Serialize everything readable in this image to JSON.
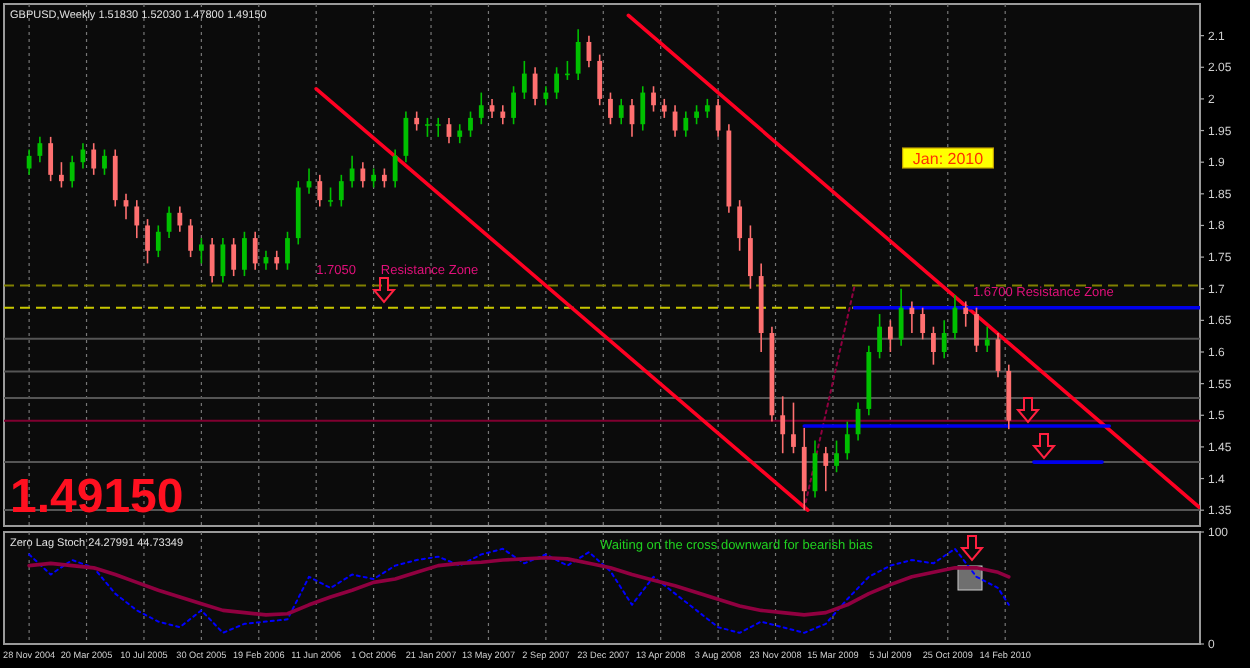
{
  "chart_data": [
    {
      "type": "candlestick",
      "title": "GBPUSD,Weekly  1.51830 1.52030 1.47800 1.49150",
      "x": [
        "2004-11-28",
        "2004-12-19",
        "2005-01-09",
        "2005-01-30",
        "2005-02-20",
        "2005-03-13",
        "2005-04-03",
        "2005-04-24",
        "2005-05-15",
        "2005-06-05",
        "2005-06-26",
        "2005-07-17",
        "2005-08-07",
        "2005-08-28",
        "2005-09-18",
        "2005-10-09",
        "2005-10-30",
        "2005-11-20",
        "2005-12-11",
        "2006-01-01",
        "2006-01-22",
        "2006-02-12",
        "2006-03-05",
        "2006-03-26",
        "2006-04-16",
        "2006-05-07",
        "2006-05-28",
        "2006-06-18",
        "2006-07-09",
        "2006-07-30",
        "2006-08-20",
        "2006-09-10",
        "2006-10-01",
        "2006-10-22",
        "2006-11-12",
        "2006-12-03",
        "2006-12-24",
        "2007-01-14",
        "2007-02-04",
        "2007-02-25",
        "2007-03-18",
        "2007-04-08",
        "2007-04-29",
        "2007-05-20",
        "2007-06-10",
        "2007-07-01",
        "2007-07-22",
        "2007-08-12",
        "2007-09-02",
        "2007-09-23",
        "2007-10-14",
        "2007-11-04",
        "2007-11-25",
        "2007-12-16",
        "2008-01-06",
        "2008-01-27",
        "2008-02-17",
        "2008-03-09",
        "2008-03-30",
        "2008-04-20",
        "2008-05-11",
        "2008-06-01",
        "2008-06-22",
        "2008-07-13",
        "2008-08-03",
        "2008-08-24",
        "2008-09-14",
        "2008-10-05",
        "2008-10-26",
        "2008-11-16",
        "2008-12-07",
        "2008-12-28",
        "2009-01-18",
        "2009-02-08",
        "2009-03-01",
        "2009-03-22",
        "2009-04-12",
        "2009-05-03",
        "2009-05-24",
        "2009-06-14",
        "2009-07-05",
        "2009-07-26",
        "2009-08-16",
        "2009-09-06",
        "2009-09-27",
        "2009-10-18",
        "2009-11-08",
        "2009-11-29",
        "2009-12-20",
        "2010-01-10",
        "2010-01-31",
        "2010-02-21"
      ],
      "ohlc": [
        [
          1.89,
          1.92,
          1.88,
          1.91
        ],
        [
          1.91,
          1.94,
          1.9,
          1.93
        ],
        [
          1.93,
          1.94,
          1.87,
          1.88
        ],
        [
          1.88,
          1.9,
          1.86,
          1.87
        ],
        [
          1.87,
          1.91,
          1.86,
          1.9
        ],
        [
          1.9,
          1.93,
          1.89,
          1.92
        ],
        [
          1.92,
          1.93,
          1.88,
          1.89
        ],
        [
          1.89,
          1.92,
          1.88,
          1.91
        ],
        [
          1.91,
          1.92,
          1.83,
          1.84
        ],
        [
          1.84,
          1.85,
          1.81,
          1.83
        ],
        [
          1.83,
          1.84,
          1.78,
          1.8
        ],
        [
          1.8,
          1.81,
          1.74,
          1.76
        ],
        [
          1.76,
          1.8,
          1.75,
          1.79
        ],
        [
          1.79,
          1.83,
          1.78,
          1.82
        ],
        [
          1.82,
          1.83,
          1.79,
          1.8
        ],
        [
          1.8,
          1.81,
          1.75,
          1.76
        ],
        [
          1.76,
          1.78,
          1.74,
          1.77
        ],
        [
          1.77,
          1.78,
          1.71,
          1.72
        ],
        [
          1.72,
          1.78,
          1.71,
          1.77
        ],
        [
          1.77,
          1.78,
          1.72,
          1.73
        ],
        [
          1.73,
          1.79,
          1.72,
          1.78
        ],
        [
          1.78,
          1.79,
          1.73,
          1.74
        ],
        [
          1.74,
          1.76,
          1.73,
          1.75
        ],
        [
          1.75,
          1.76,
          1.73,
          1.74
        ],
        [
          1.74,
          1.79,
          1.73,
          1.78
        ],
        [
          1.78,
          1.87,
          1.77,
          1.86
        ],
        [
          1.86,
          1.89,
          1.85,
          1.87
        ],
        [
          1.87,
          1.88,
          1.83,
          1.84
        ],
        [
          1.84,
          1.86,
          1.83,
          1.84
        ],
        [
          1.84,
          1.88,
          1.83,
          1.87
        ],
        [
          1.87,
          1.91,
          1.86,
          1.89
        ],
        [
          1.89,
          1.9,
          1.86,
          1.87
        ],
        [
          1.87,
          1.89,
          1.86,
          1.88
        ],
        [
          1.88,
          1.89,
          1.86,
          1.87
        ],
        [
          1.87,
          1.92,
          1.86,
          1.91
        ],
        [
          1.91,
          1.98,
          1.9,
          1.97
        ],
        [
          1.97,
          1.98,
          1.95,
          1.96
        ],
        [
          1.96,
          1.97,
          1.94,
          1.96
        ],
        [
          1.96,
          1.97,
          1.94,
          1.96
        ],
        [
          1.96,
          1.97,
          1.93,
          1.94
        ],
        [
          1.94,
          1.96,
          1.93,
          1.95
        ],
        [
          1.95,
          1.98,
          1.94,
          1.97
        ],
        [
          1.97,
          2.01,
          1.96,
          1.99
        ],
        [
          1.99,
          2.0,
          1.97,
          1.98
        ],
        [
          1.98,
          1.99,
          1.96,
          1.97
        ],
        [
          1.97,
          2.02,
          1.96,
          2.01
        ],
        [
          2.01,
          2.06,
          2.0,
          2.04
        ],
        [
          2.04,
          2.05,
          1.99,
          2.0
        ],
        [
          2.0,
          2.02,
          1.99,
          2.01
        ],
        [
          2.01,
          2.05,
          2.0,
          2.04
        ],
        [
          2.04,
          2.06,
          2.03,
          2.04
        ],
        [
          2.04,
          2.11,
          2.03,
          2.09
        ],
        [
          2.09,
          2.1,
          2.05,
          2.06
        ],
        [
          2.06,
          2.07,
          1.99,
          2.0
        ],
        [
          2.0,
          2.01,
          1.96,
          1.97
        ],
        [
          1.97,
          2.0,
          1.96,
          1.99
        ],
        [
          1.99,
          2.0,
          1.94,
          1.96
        ],
        [
          1.96,
          2.02,
          1.95,
          2.01
        ],
        [
          2.01,
          2.02,
          1.98,
          1.99
        ],
        [
          1.99,
          2.0,
          1.97,
          1.98
        ],
        [
          1.98,
          1.99,
          1.94,
          1.95
        ],
        [
          1.95,
          1.98,
          1.94,
          1.97
        ],
        [
          1.97,
          1.99,
          1.96,
          1.98
        ],
        [
          1.98,
          2.0,
          1.97,
          1.99
        ],
        [
          1.99,
          2.0,
          1.94,
          1.95
        ],
        [
          1.95,
          1.96,
          1.82,
          1.83
        ],
        [
          1.83,
          1.84,
          1.76,
          1.78
        ],
        [
          1.78,
          1.8,
          1.7,
          1.72
        ],
        [
          1.72,
          1.74,
          1.6,
          1.63
        ],
        [
          1.63,
          1.64,
          1.49,
          1.5
        ],
        [
          1.5,
          1.53,
          1.44,
          1.47
        ],
        [
          1.47,
          1.52,
          1.44,
          1.45
        ],
        [
          1.45,
          1.48,
          1.35,
          1.38
        ],
        [
          1.38,
          1.46,
          1.37,
          1.44
        ],
        [
          1.44,
          1.45,
          1.38,
          1.42
        ],
        [
          1.42,
          1.46,
          1.41,
          1.44
        ],
        [
          1.44,
          1.49,
          1.43,
          1.47
        ],
        [
          1.47,
          1.52,
          1.46,
          1.51
        ],
        [
          1.51,
          1.61,
          1.5,
          1.6
        ],
        [
          1.6,
          1.66,
          1.59,
          1.64
        ],
        [
          1.64,
          1.65,
          1.6,
          1.62
        ],
        [
          1.62,
          1.7,
          1.61,
          1.67
        ],
        [
          1.67,
          1.68,
          1.63,
          1.66
        ],
        [
          1.66,
          1.67,
          1.62,
          1.63
        ],
        [
          1.63,
          1.64,
          1.58,
          1.6
        ],
        [
          1.6,
          1.65,
          1.59,
          1.63
        ],
        [
          1.63,
          1.69,
          1.62,
          1.67
        ],
        [
          1.67,
          1.68,
          1.64,
          1.66
        ],
        [
          1.66,
          1.67,
          1.6,
          1.61
        ],
        [
          1.61,
          1.64,
          1.6,
          1.62
        ],
        [
          1.62,
          1.63,
          1.56,
          1.57
        ],
        [
          1.57,
          1.58,
          1.478,
          1.4915
        ]
      ],
      "series": [
        {
          "type": "line",
          "x": [
            "2006-06-11",
            "2009-01-25"
          ],
          "values": [
            2.016,
            1.35
          ],
          "color": "#ff0022"
        },
        {
          "type": "line",
          "x": [
            "2008-02-10",
            "2011-02-27"
          ],
          "values": [
            2.132,
            1.355
          ],
          "color": "#ff0022"
        },
        {
          "type": "line",
          "x": [
            "2009-01-18",
            "2009-04-26"
          ],
          "values": [
            1.352,
            1.704
          ],
          "color": "#900040",
          "line_style": "dotted"
        },
        {
          "type": "line",
          "x": [
            "2009-04-26",
            "2011-02-27"
          ],
          "values": [
            1.67,
            1.67
          ],
          "color": "#0000ee"
        },
        {
          "type": "line",
          "x": [
            "2009-01-18",
            "2010-09-05"
          ],
          "values": [
            1.483,
            1.483
          ],
          "color": "#0000ee"
        },
        {
          "type": "line",
          "x": [
            "2010-04-11",
            "2010-08-22"
          ],
          "values": [
            1.426,
            1.426
          ],
          "color": "#0000ee"
        }
      ],
      "ref_lines": [
        {
          "axis": "y",
          "value": 1.705,
          "color": "#808000",
          "line_style": "dashed"
        },
        {
          "axis": "y",
          "value": 1.67,
          "color": "#c8c800",
          "line_style": "dashed"
        },
        {
          "axis": "y",
          "value": 1.4915,
          "color": "#800030",
          "line_style": "solid"
        },
        {
          "axis": "y",
          "value": 1.6208,
          "color": "#555555"
        },
        {
          "axis": "y",
          "value": 1.5691,
          "color": "#555555"
        },
        {
          "axis": "y",
          "value": 1.5273,
          "color": "#555555"
        },
        {
          "axis": "y",
          "value": 1.426,
          "color": "#555555"
        },
        {
          "axis": "y",
          "value": 1.3503,
          "color": "#555555"
        }
      ],
      "annotations": [
        {
          "text": "1.7050",
          "x": "2006-06-11",
          "y": 1.705
        },
        {
          "text": "Resistance Zone",
          "x": "2006-10-15",
          "y": 1.705
        },
        {
          "text": "1.6700  Resistance Zone",
          "x": "2009-12-13",
          "y": 1.67
        },
        "Jan: 2010",
        "1.49150"
      ],
      "xlim": [
        "2004-10-10",
        "2011-03-01"
      ],
      "xticks": [
        "2004-11-28",
        "2005-03-20",
        "2005-07-10",
        "2005-10-30",
        "2006-02-19",
        "2006-06-11",
        "2006-10-01",
        "2007-01-21",
        "2007-05-13",
        "2007-09-02",
        "2007-12-23",
        "2008-04-13",
        "2008-08-03",
        "2008-11-23",
        "2009-03-15",
        "2009-07-05",
        "2009-10-25",
        "2010-02-14"
      ],
      "ylim": [
        1.325,
        2.15
      ],
      "yticks": [
        1.35,
        1.4,
        1.45,
        1.5,
        1.55,
        1.6,
        1.65,
        1.7,
        1.75,
        1.8,
        1.85,
        1.9,
        1.95,
        2,
        2.05,
        2.1
      ],
      "grid": "x",
      "tick_labels": "y"
    },
    {
      "type": "line",
      "title": "Zero Lag Stoch 24.27991 44.73349",
      "x": [
        "2004-11-28",
        "2005-01-09",
        "2005-02-20",
        "2005-04-03",
        "2005-05-15",
        "2005-06-26",
        "2005-08-07",
        "2005-09-18",
        "2005-10-30",
        "2005-12-11",
        "2006-01-22",
        "2006-03-05",
        "2006-04-16",
        "2006-05-28",
        "2006-07-09",
        "2006-08-20",
        "2006-10-01",
        "2006-11-12",
        "2006-12-24",
        "2007-02-04",
        "2007-03-18",
        "2007-04-29",
        "2007-06-10",
        "2007-07-22",
        "2007-09-02",
        "2007-10-14",
        "2007-11-25",
        "2008-01-06",
        "2008-02-17",
        "2008-03-30",
        "2008-05-11",
        "2008-06-22",
        "2008-08-03",
        "2008-09-14",
        "2008-10-26",
        "2008-12-07",
        "2009-01-18",
        "2009-03-01",
        "2009-04-12",
        "2009-05-24",
        "2009-07-05",
        "2009-08-16",
        "2009-09-27",
        "2009-11-08",
        "2009-12-20",
        "2010-01-31",
        "2010-02-21"
      ],
      "series": [
        {
          "color": "#0000ff",
          "line_style": "dotted",
          "values": [
            80,
            62,
            75,
            68,
            45,
            30,
            20,
            15,
            30,
            10,
            18,
            20,
            22,
            60,
            50,
            62,
            58,
            70,
            75,
            78,
            70,
            80,
            85,
            72,
            80,
            70,
            82,
            65,
            35,
            60,
            45,
            30,
            15,
            10,
            20,
            15,
            10,
            18,
            40,
            60,
            70,
            75,
            72,
            85,
            60,
            50,
            35
          ]
        },
        {
          "color": "#900040",
          "line_style": "solid",
          "values": [
            70,
            72,
            70,
            68,
            62,
            55,
            48,
            42,
            36,
            30,
            28,
            26,
            27,
            35,
            42,
            48,
            55,
            58,
            64,
            70,
            72,
            73,
            75,
            76,
            77,
            76,
            72,
            68,
            62,
            57,
            52,
            46,
            40,
            34,
            30,
            28,
            26,
            28,
            35,
            45,
            53,
            60,
            64,
            68,
            68,
            64,
            60
          ]
        }
      ],
      "annotations": [
        "Waiting on the cross downward for bearish bias"
      ],
      "xlim": [
        "2004-10-10",
        "2011-03-01"
      ],
      "xticks": [
        {
          "value": "2004-11-28",
          "label": "28 Nov 2004"
        },
        {
          "value": "2005-03-20",
          "label": "20 Mar 2005"
        },
        {
          "value": "2005-07-10",
          "label": "10 Jul 2005"
        },
        {
          "value": "2005-10-30",
          "label": "30 Oct 2005"
        },
        {
          "value": "2006-02-19",
          "label": "19 Feb 2006"
        },
        {
          "value": "2006-06-11",
          "label": "11 Jun 2006"
        },
        {
          "value": "2006-10-01",
          "label": "1 Oct 2006"
        },
        {
          "value": "2007-01-21",
          "label": "21 Jan 2007"
        },
        {
          "value": "2007-05-13",
          "label": "13 May 2007"
        },
        {
          "value": "2007-09-02",
          "label": "2 Sep 2007"
        },
        {
          "value": "2007-12-23",
          "label": "23 Dec 2007"
        },
        {
          "value": "2008-04-13",
          "label": "13 Apr 2008"
        },
        {
          "value": "2008-08-03",
          "label": "3 Aug 2008"
        },
        {
          "value": "2008-11-23",
          "label": "23 Nov 2008"
        },
        {
          "value": "2009-03-15",
          "label": "15 Mar 2009"
        },
        {
          "value": "2009-07-05",
          "label": "5 Jul 2009"
        },
        {
          "value": "2009-10-25",
          "label": "25 Oct 2009"
        },
        {
          "value": "2010-02-14",
          "label": "14 Feb 2010"
        }
      ],
      "ylim": [
        0,
        100
      ],
      "yticks": [
        {
          "value": 100,
          "label": "100"
        },
        {
          "value": 0,
          "label": "0"
        }
      ],
      "grid": "x"
    }
  ]
}
